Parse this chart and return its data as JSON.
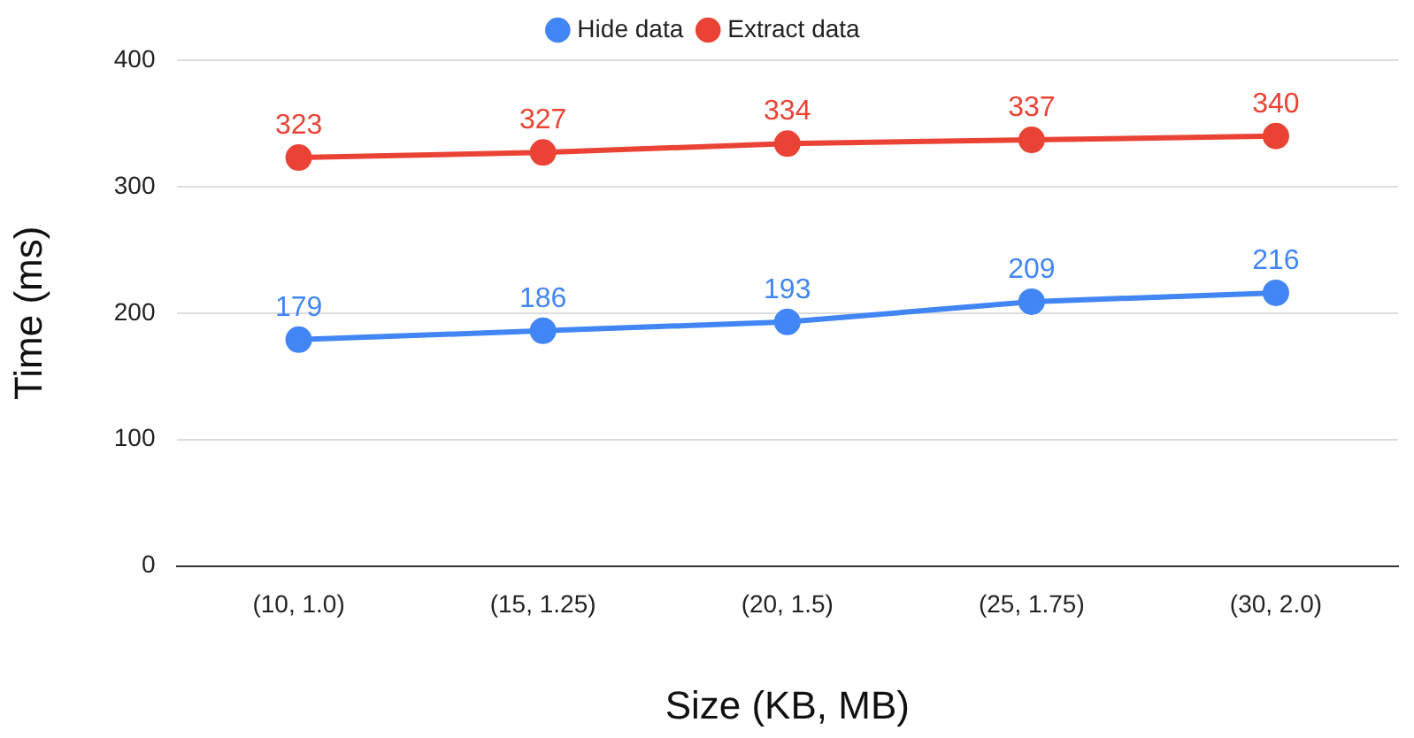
{
  "chart_data": {
    "type": "line",
    "xlabel": "Size (KB, MB)",
    "ylabel": "Time (ms)",
    "categories": [
      "(10, 1.0)",
      "(15, 1.25)",
      "(20, 1.5)",
      "(25, 1.75)",
      "(30, 2.0)"
    ],
    "series": [
      {
        "name": "Hide data",
        "color": "#4285f4",
        "values": [
          179,
          186,
          193,
          209,
          216
        ]
      },
      {
        "name": "Extract data",
        "color": "#ea4335",
        "values": [
          323,
          327,
          334,
          337,
          340
        ]
      }
    ],
    "ylim": [
      0,
      400
    ],
    "yticks": [
      0,
      100,
      200,
      300,
      400
    ],
    "grid": "y",
    "legend": "top",
    "marker": "circle",
    "line_style": "solid",
    "data_labels": true
  }
}
